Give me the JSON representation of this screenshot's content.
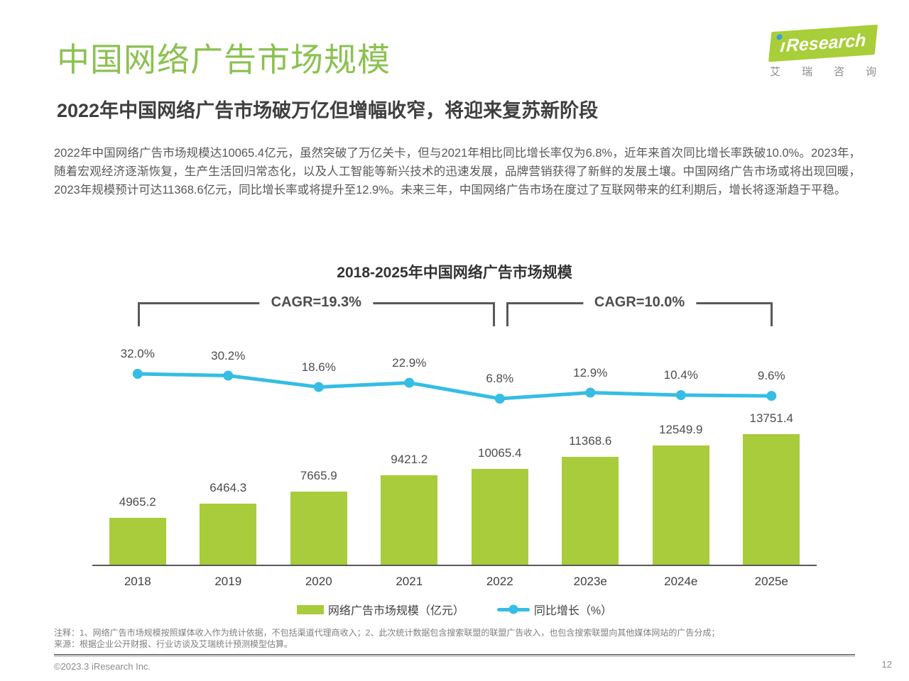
{
  "header": {
    "title": "中国网络广告市场规模",
    "subtitle": "2022年中国网络广告市场破万亿但增幅收窄，将迎来复苏新阶段",
    "logo": {
      "brand_i": "ı",
      "brand_text": "Research",
      "brand_cn": [
        "艾",
        "瑞",
        "咨",
        "询"
      ]
    }
  },
  "intro": {
    "paragraph": "2022年中国网络广告市场规模达10065.4亿元，虽然突破了万亿关卡，但与2021年相比同比增长率仅为6.8%，近年来首次同比增长率跌破10.0%。2023年，随着宏观经济逐渐恢复，生产生活回归常态化，以及人工智能等新兴技术的迅速发展，品牌营销获得了新鲜的发展土壤。中国网络广告市场或将出现回暖，2023年规模预计可达11368.6亿元，同比增长率或将提升至12.9%。未来三年，中国网络广告市场在度过了互联网带来的红利期后，增长将逐渐趋于平稳。"
  },
  "chart_data": {
    "type": "bar",
    "title": "2018-2025年中国网络广告市场规模",
    "categories": [
      "2018",
      "2019",
      "2020",
      "2021",
      "2022",
      "2023e",
      "2024e",
      "2025e"
    ],
    "series": [
      {
        "name": "网络广告市场规模（亿元）",
        "type": "bar",
        "color": "#a8cc3b",
        "values": [
          4965.2,
          6464.3,
          7665.9,
          9421.2,
          10065.4,
          11368.6,
          12549.9,
          13751.4
        ]
      },
      {
        "name": "同比增长（%）",
        "type": "line",
        "color": "#35bde4",
        "values": [
          32.0,
          30.2,
          18.6,
          22.9,
          6.8,
          12.9,
          10.4,
          9.6
        ]
      }
    ],
    "annotations": [
      {
        "label": "CAGR=19.3%",
        "from_index": 0,
        "to_index": 4
      },
      {
        "label": "CAGR=10.0%",
        "from_index": 4,
        "to_index": 7
      }
    ],
    "legend_position": "bottom",
    "grid": false
  },
  "footnotes": {
    "note": "注释：1、网络广告市场规模按照媒体收入作为统计依据，不包括渠道代理商收入；2、此次统计数据包含搜索联盟的联盟广告收入，也包含搜索联盟向其他媒体网站的广告分成；",
    "source": "来源：根据企业公开财报、行业访谈及艾瑞统计预测模型估算。",
    "copyright": "©2023.3 iResearch Inc.",
    "page_number": "12"
  },
  "colors": {
    "title_green": "#8cc152",
    "bar_green": "#a8cc3b",
    "line_blue": "#35bde4"
  }
}
